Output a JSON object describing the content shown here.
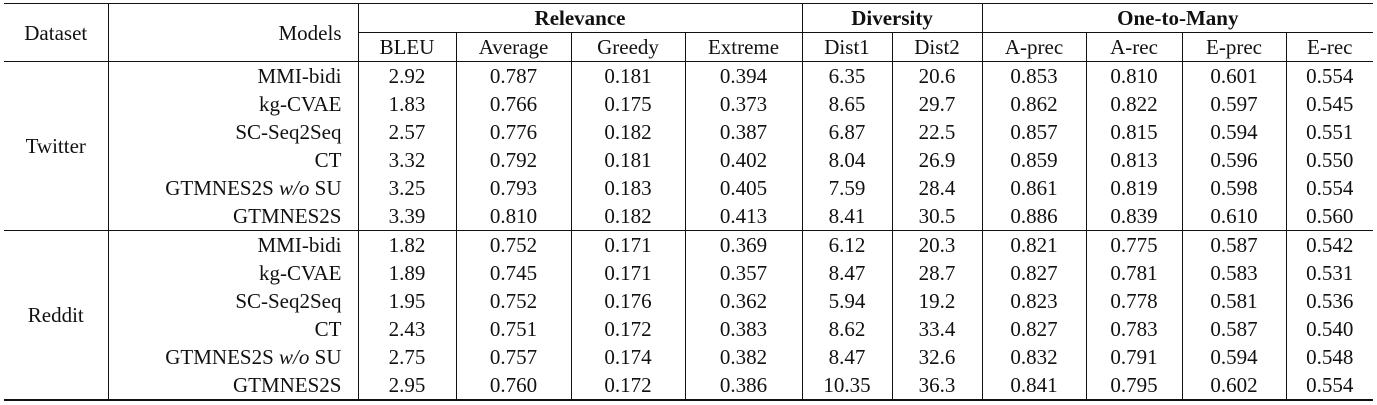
{
  "header": {
    "dataset": "Dataset",
    "models": "Models",
    "groups": [
      "Relevance",
      "Diversity",
      "One-to-Many"
    ],
    "columns": [
      "BLEU",
      "Average",
      "Greedy",
      "Extreme",
      "Dist1",
      "Dist2",
      "A-prec",
      "A-rec",
      "E-prec",
      "E-rec"
    ]
  },
  "datasets": [
    {
      "name": "Twitter",
      "rows": [
        {
          "model": "MMI-bidi",
          "model_suffix": "",
          "values": [
            "2.92",
            "0.787",
            "0.181",
            "0.394",
            "6.35",
            "20.6",
            "0.853",
            "0.810",
            "0.601",
            "0.554"
          ],
          "bold": []
        },
        {
          "model": "kg-CVAE",
          "model_suffix": "",
          "values": [
            "1.83",
            "0.766",
            "0.175",
            "0.373",
            "8.65",
            "29.7",
            "0.862",
            "0.822",
            "0.597",
            "0.545"
          ],
          "bold": []
        },
        {
          "model": "SC-Seq2Seq",
          "model_suffix": "",
          "values": [
            "2.57",
            "0.776",
            "0.182",
            "0.387",
            "6.87",
            "22.5",
            "0.857",
            "0.815",
            "0.594",
            "0.551"
          ],
          "bold": []
        },
        {
          "model": "CT",
          "model_suffix": "",
          "values": [
            "3.32",
            "0.792",
            "0.181",
            "0.402",
            "8.04",
            "26.9",
            "0.859",
            "0.813",
            "0.596",
            "0.550"
          ],
          "bold": []
        },
        {
          "model": "GTMNES2S",
          "model_italic": "w/o",
          "model_suffix": "SU",
          "values": [
            "3.25",
            "0.793",
            "0.183",
            "0.405",
            "7.59",
            "28.4",
            "0.861",
            "0.819",
            "0.598",
            "0.554"
          ],
          "bold": []
        },
        {
          "model": "GTMNES2S",
          "model_suffix": "",
          "values": [
            "3.39",
            "0.810",
            "0.182",
            "0.413",
            "8.41",
            "30.5",
            "0.886",
            "0.839",
            "0.610",
            "0.560"
          ],
          "bold": [
            1,
            3,
            5,
            6,
            7,
            8
          ]
        }
      ]
    },
    {
      "name": "Reddit",
      "rows": [
        {
          "model": "MMI-bidi",
          "model_suffix": "",
          "values": [
            "1.82",
            "0.752",
            "0.171",
            "0.369",
            "6.12",
            "20.3",
            "0.821",
            "0.775",
            "0.587",
            "0.542"
          ],
          "bold": []
        },
        {
          "model": "kg-CVAE",
          "model_suffix": "",
          "values": [
            "1.89",
            "0.745",
            "0.171",
            "0.357",
            "8.47",
            "28.7",
            "0.827",
            "0.781",
            "0.583",
            "0.531"
          ],
          "bold": []
        },
        {
          "model": "SC-Seq2Seq",
          "model_suffix": "",
          "values": [
            "1.95",
            "0.752",
            "0.176",
            "0.362",
            "5.94",
            "19.2",
            "0.823",
            "0.778",
            "0.581",
            "0.536"
          ],
          "bold": []
        },
        {
          "model": "CT",
          "model_suffix": "",
          "values": [
            "2.43",
            "0.751",
            "0.172",
            "0.383",
            "8.62",
            "33.4",
            "0.827",
            "0.783",
            "0.587",
            "0.540"
          ],
          "bold": []
        },
        {
          "model": "GTMNES2S",
          "model_italic": "w/o",
          "model_suffix": "SU",
          "values": [
            "2.75",
            "0.757",
            "0.174",
            "0.382",
            "8.47",
            "32.6",
            "0.832",
            "0.791",
            "0.594",
            "0.548"
          ],
          "bold": []
        },
        {
          "model": "GTMNES2S",
          "model_suffix": "",
          "values": [
            "2.95",
            "0.760",
            "0.172",
            "0.386",
            "10.35",
            "36.3",
            "0.841",
            "0.795",
            "0.602",
            "0.554"
          ],
          "bold": [
            0,
            1,
            4,
            5,
            6,
            7,
            8,
            9
          ]
        }
      ]
    }
  ]
}
